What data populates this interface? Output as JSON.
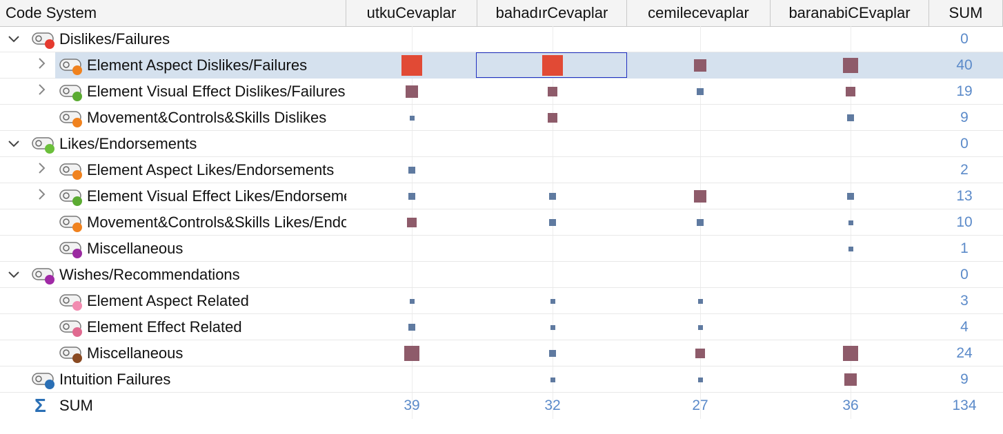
{
  "header": {
    "first_col": "Code System",
    "columns": [
      "utkuCevaplar",
      "bahadırCevaplar",
      "cemilecevaplar",
      "baranabiCEvaplar"
    ],
    "sum_col": "SUM"
  },
  "colors": {
    "highlight_row": "#d5e1ee",
    "red_square": "#e14a35",
    "mauve_square": "#8e5b6a",
    "blue_square": "#5f7aa0",
    "sum_text": "#5b8ac9"
  },
  "rows": [
    {
      "label": "Dislikes/Failures",
      "level": 0,
      "expander": "expanded",
      "dot": "#e53a2f",
      "icon": "code-icon",
      "sum": "0",
      "cells": [
        null,
        null,
        null,
        null
      ]
    },
    {
      "label": "Element Aspect Dislikes/Failures",
      "level": 1,
      "expander": "collapsed",
      "dot": "#f0821e",
      "icon": "code-icon",
      "sum": "40",
      "selected": true,
      "cells": [
        "red-lg",
        "red-lg",
        "mauve-md",
        "mauve-lg"
      ]
    },
    {
      "label": "Element Visual Effect Dislikes/Failures",
      "level": 1,
      "expander": "collapsed",
      "dot": "#5bab32",
      "icon": "code-icon",
      "sum": "19",
      "cells": [
        "mauve-md",
        "mauve-sm",
        "blue-xs",
        "mauve-sm"
      ]
    },
    {
      "label": "Movement&Controls&Skills Dislikes",
      "level": 1,
      "expander": "none",
      "dot": "#f0821e",
      "icon": "code-icon",
      "sum": "9",
      "cells": [
        "blue-tiny",
        "mauve-sm",
        null,
        "blue-xs"
      ]
    },
    {
      "label": "Likes/Endorsements",
      "level": 0,
      "expander": "expanded",
      "dot": "#6bbf3b",
      "icon": "code-icon",
      "sum": "0",
      "cells": [
        null,
        null,
        null,
        null
      ]
    },
    {
      "label": "Element Aspect Likes/Endorsements",
      "level": 1,
      "expander": "collapsed",
      "dot": "#f0821e",
      "icon": "code-icon",
      "sum": "2",
      "cells": [
        "blue-xs",
        null,
        null,
        null
      ]
    },
    {
      "label": "Element Visual Effect Likes/Endorsements",
      "level": 1,
      "expander": "collapsed",
      "dot": "#5bab32",
      "icon": "code-icon",
      "sum": "13",
      "cells": [
        "blue-xs",
        "blue-xs",
        "mauve-md",
        "blue-xs"
      ]
    },
    {
      "label": "Movement&Controls&Skills Likes/Endorsements",
      "level": 1,
      "expander": "none",
      "dot": "#f0821e",
      "icon": "code-icon",
      "sum": "10",
      "cells": [
        "mauve-sm",
        "blue-xs",
        "blue-xs",
        "blue-tiny"
      ]
    },
    {
      "label": "Miscellaneous",
      "level": 1,
      "expander": "none",
      "dot": "#9a2aa0",
      "icon": "code-icon",
      "sum": "1",
      "cells": [
        null,
        null,
        null,
        "blue-tiny"
      ]
    },
    {
      "label": "Wishes/Recommendations",
      "level": 0,
      "expander": "expanded",
      "dot": "#a02aa6",
      "icon": "code-icon",
      "sum": "0",
      "cells": [
        null,
        null,
        null,
        null
      ]
    },
    {
      "label": "Element Aspect Related",
      "level": 1,
      "expander": "none",
      "dot": "#f28bb0",
      "icon": "code-icon",
      "sum": "3",
      "cells": [
        "blue-tiny",
        "blue-tiny",
        "blue-tiny",
        null
      ]
    },
    {
      "label": "Element Effect Related",
      "level": 1,
      "expander": "none",
      "dot": "#e06a90",
      "icon": "code-icon",
      "sum": "4",
      "cells": [
        "blue-xs",
        "blue-tiny",
        "blue-tiny",
        null
      ]
    },
    {
      "label": "Miscellaneous",
      "level": 1,
      "expander": "none",
      "dot": "#8a4a22",
      "icon": "code-icon",
      "sum": "24",
      "cells": [
        "mauve-lg",
        "blue-xs",
        "mauve-sm",
        "mauve-lg"
      ]
    },
    {
      "label": "Intuition Failures",
      "level": 0,
      "expander": "none",
      "dot": "#2a6fb5",
      "icon": "code-icon",
      "sum": "9",
      "cells": [
        null,
        "blue-tiny",
        "blue-tiny",
        "mauve-md"
      ]
    }
  ],
  "footer": {
    "label": "SUM",
    "icon": "sigma-icon",
    "column_sums": [
      "39",
      "32",
      "27",
      "36"
    ],
    "total": "134"
  }
}
